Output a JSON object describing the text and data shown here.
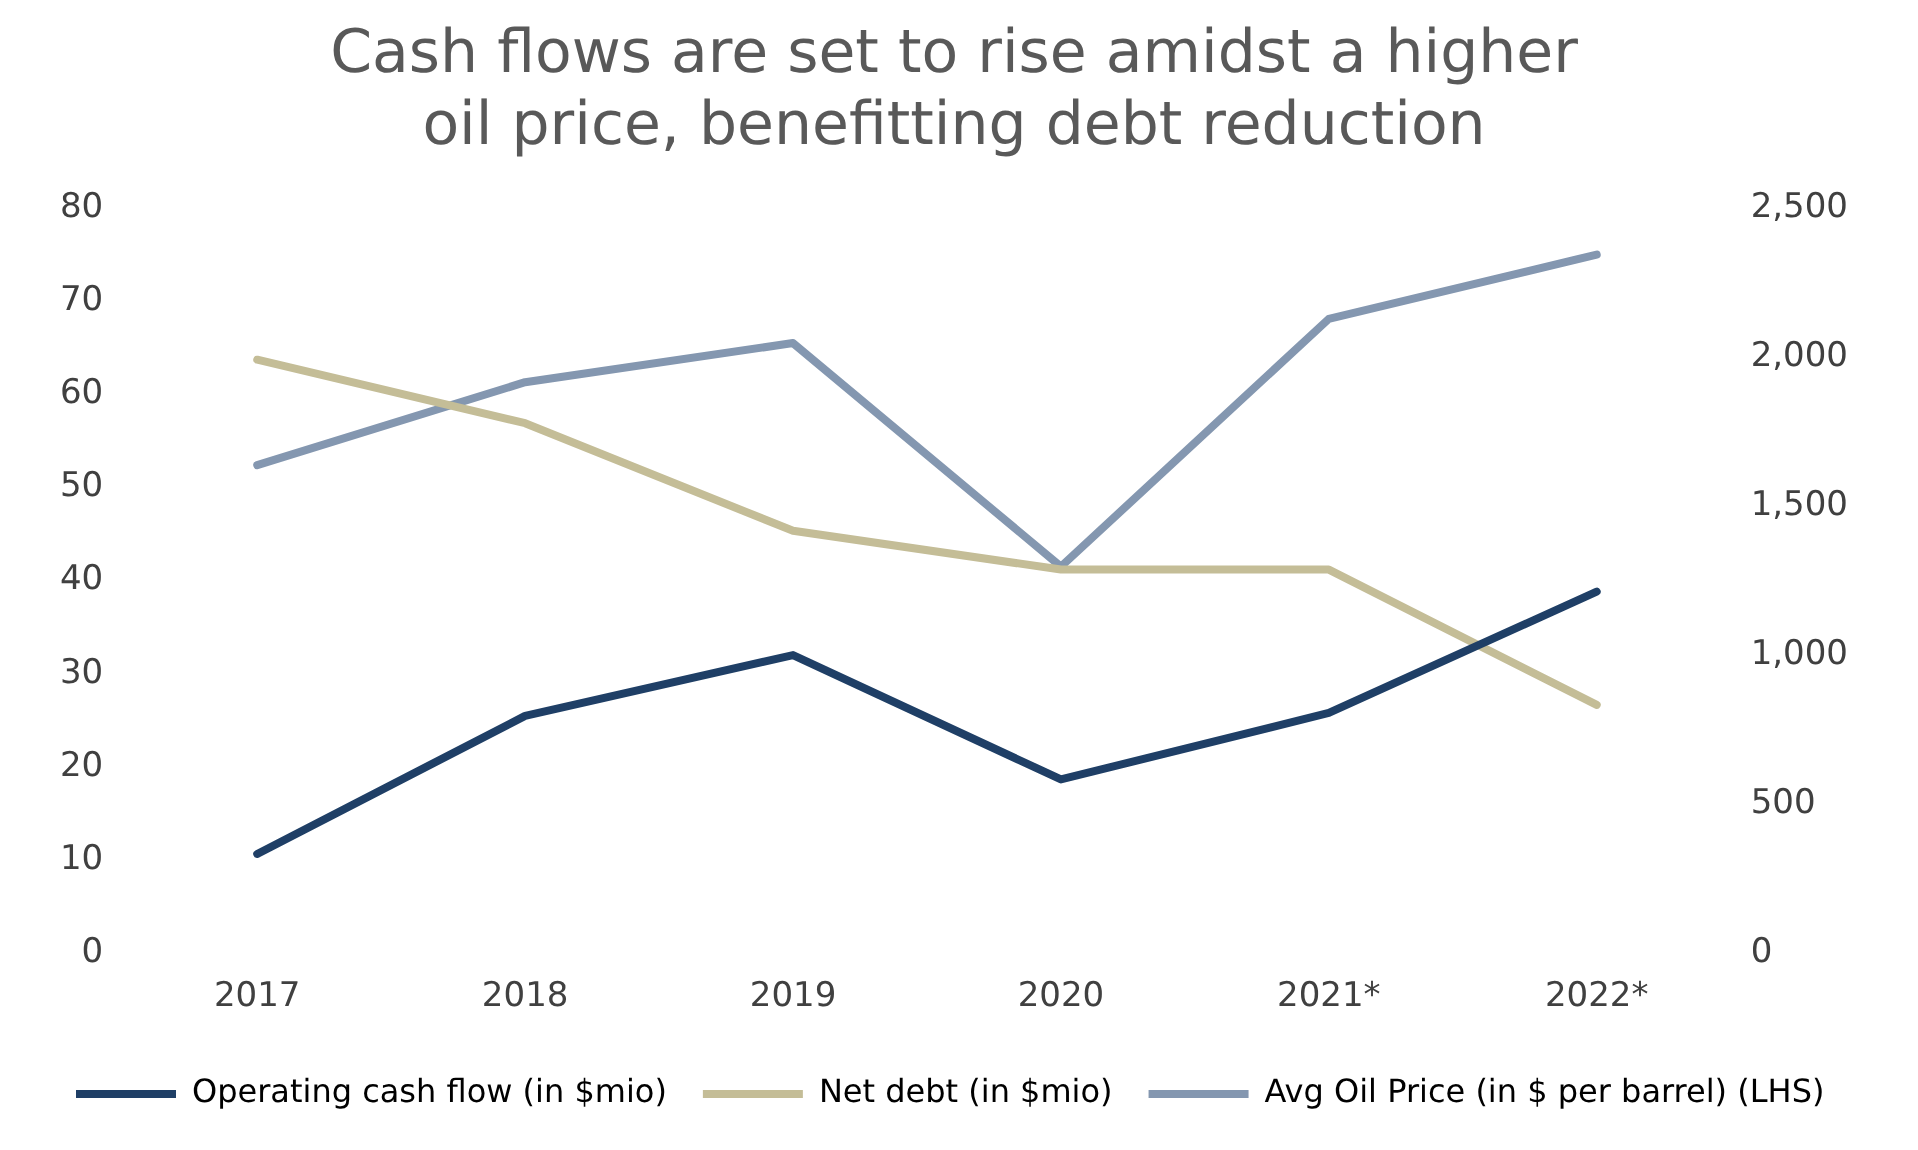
{
  "chart_data": {
    "type": "line",
    "title": "Cash flows are set to rise amidst a higher oil price, benefitting debt reduction",
    "categories": [
      "2017",
      "2018",
      "2019",
      "2020",
      "2021*",
      "2022*"
    ],
    "series": [
      {
        "name": "Operating cash flow (in $mio)",
        "color": "#1f3f66",
        "values": [
          333,
          796,
          1000,
          583,
          806,
          1213
        ],
        "axis": "y2"
      },
      {
        "name": "Net debt (in $mio)",
        "color": "#c4bd97",
        "values": [
          1991,
          1778,
          1417,
          1287,
          1287,
          833
        ],
        "axis": "y2"
      },
      {
        "name": "Avg Oil Price (in $ per barrel) (LHS)",
        "color": "#8497b0",
        "values": [
          52.4,
          61.3,
          65.5,
          41.5,
          68.1,
          75
        ]
      }
    ],
    "ylim": [
      0,
      80
    ],
    "yticks": [
      0,
      10,
      20,
      30,
      40,
      50,
      60,
      70,
      80
    ],
    "y2lim": [
      0,
      2500
    ],
    "y2ticks": [
      0,
      500,
      {
        "value": 1000,
        "label": "1,000"
      },
      {
        "value": 1500,
        "label": "1,500"
      },
      {
        "value": 2000,
        "label": "2,000"
      },
      {
        "value": 2500,
        "label": "2,500"
      }
    ],
    "grid": false,
    "legend": "bottom",
    "marker": "none",
    "line_style": "solid"
  }
}
